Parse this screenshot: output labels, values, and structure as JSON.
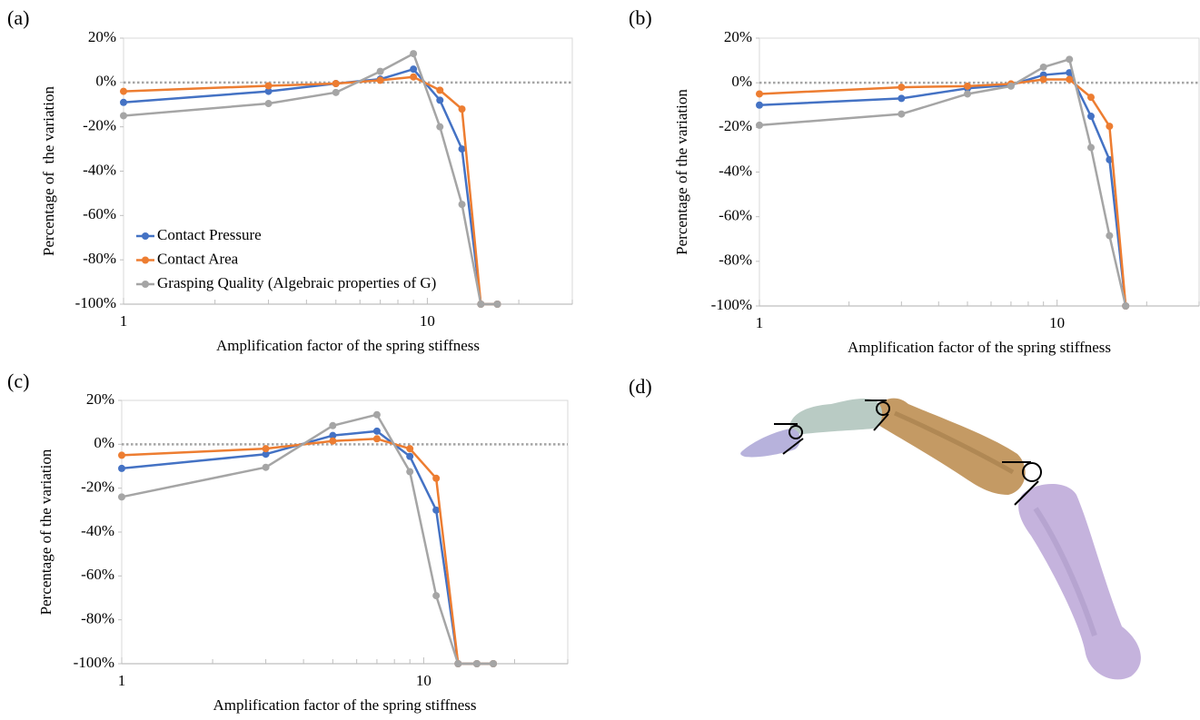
{
  "chart_data": [
    {
      "type": "line",
      "panel": "(a)",
      "xlabel": "Amplification factor of the spring stiffness",
      "ylabel": "Percentage of  the variation",
      "xscale": "log",
      "xlim": [
        1,
        30
      ],
      "xticks": [
        1,
        10
      ],
      "xminor_ticks": [
        2,
        3,
        4,
        5,
        6,
        7,
        8,
        9,
        20,
        30
      ],
      "ylim": [
        -100,
        20
      ],
      "yticks": [
        {
          "value": -100,
          "label": "-100%"
        },
        {
          "value": -80,
          "label": "-80%"
        },
        {
          "value": -60,
          "label": "-60%"
        },
        {
          "value": -40,
          "label": "-40%"
        },
        {
          "value": -20,
          "label": "-20%"
        },
        {
          "value": 0,
          "label": "0%"
        },
        {
          "value": 20,
          "label": "20%"
        }
      ],
      "reference_line": 0,
      "legend": "lower left",
      "x": [
        1,
        3,
        5,
        7,
        9,
        11,
        13,
        15,
        17
      ],
      "series": [
        {
          "name": "Contact Pressure",
          "color": "#4472c4",
          "values": [
            -9,
            -4,
            -0.5,
            1.5,
            6,
            -8,
            -30,
            -100,
            -100
          ]
        },
        {
          "name": "Contact Area",
          "color": "#ed7d31",
          "values": [
            -4,
            -1.5,
            -0.5,
            1,
            2.5,
            -3.5,
            -12,
            -100,
            -100
          ]
        },
        {
          "name": "Grasping Quality (Algebraic properties of G)",
          "color": "#a5a5a5",
          "values": [
            -15,
            -9.5,
            -4.5,
            5,
            13,
            -20,
            -55,
            -100,
            -100
          ]
        }
      ]
    },
    {
      "type": "line",
      "panel": "(b)",
      "xlabel": "Amplification factor of the spring stiffness",
      "ylabel": "Percentage of the variation",
      "xscale": "log",
      "xlim": [
        1,
        30
      ],
      "xticks": [
        1,
        10
      ],
      "xminor_ticks": [
        2,
        3,
        4,
        5,
        6,
        7,
        8,
        9,
        20,
        30
      ],
      "ylim": [
        -100,
        20
      ],
      "yticks": [
        {
          "value": -100,
          "label": "-100%"
        },
        {
          "value": -80,
          "label": "-80%"
        },
        {
          "value": -60,
          "label": "-60%"
        },
        {
          "value": -40,
          "label": "-40%"
        },
        {
          "value": -20,
          "label": "-20%"
        },
        {
          "value": 0,
          "label": "0%"
        },
        {
          "value": 20,
          "label": "20%"
        }
      ],
      "reference_line": 0,
      "x": [
        1,
        3,
        5,
        7,
        9,
        11,
        13,
        15,
        17
      ],
      "series": [
        {
          "color": "#4472c4",
          "values": [
            -10,
            -7,
            -2.5,
            -1,
            3.5,
            4.5,
            -15,
            -34.5,
            -100
          ]
        },
        {
          "color": "#ed7d31",
          "values": [
            -5,
            -2,
            -1.5,
            -0.5,
            1.5,
            1.5,
            -6.5,
            -19.5,
            -100
          ]
        },
        {
          "color": "#a5a5a5",
          "values": [
            -19,
            -14,
            -5,
            -1.5,
            7,
            10.5,
            -29,
            -68.5,
            -100
          ]
        }
      ]
    },
    {
      "type": "line",
      "panel": "(c)",
      "xlabel": "Amplification factor of the spring stiffness",
      "ylabel": "Percentage of the variation",
      "xscale": "log",
      "xlim": [
        1,
        30
      ],
      "xticks": [
        1,
        10
      ],
      "xminor_ticks": [
        2,
        3,
        4,
        5,
        6,
        7,
        8,
        9,
        20,
        30
      ],
      "ylim": [
        -100,
        20
      ],
      "yticks": [
        {
          "value": -100,
          "label": "-100%"
        },
        {
          "value": -80,
          "label": "-80%"
        },
        {
          "value": -60,
          "label": "-60%"
        },
        {
          "value": -40,
          "label": "-40%"
        },
        {
          "value": -20,
          "label": "-20%"
        },
        {
          "value": 0,
          "label": "0%"
        },
        {
          "value": 20,
          "label": "20%"
        }
      ],
      "reference_line": 0,
      "x": [
        1,
        3,
        5,
        7,
        9,
        11,
        13,
        15,
        17
      ],
      "series": [
        {
          "color": "#4472c4",
          "values": [
            -11,
            -4.5,
            4,
            6,
            -5.5,
            -30,
            -100,
            -100,
            -100
          ]
        },
        {
          "color": "#ed7d31",
          "values": [
            -5,
            -2,
            1.5,
            2.5,
            -2,
            -15.5,
            -100,
            -100,
            -100
          ]
        },
        {
          "color": "#a5a5a5",
          "values": [
            -24,
            -10.5,
            8.5,
            13.5,
            -12.5,
            -69,
            -100,
            -100,
            -100
          ]
        }
      ]
    }
  ],
  "diagram": {
    "panel": "(d)"
  }
}
